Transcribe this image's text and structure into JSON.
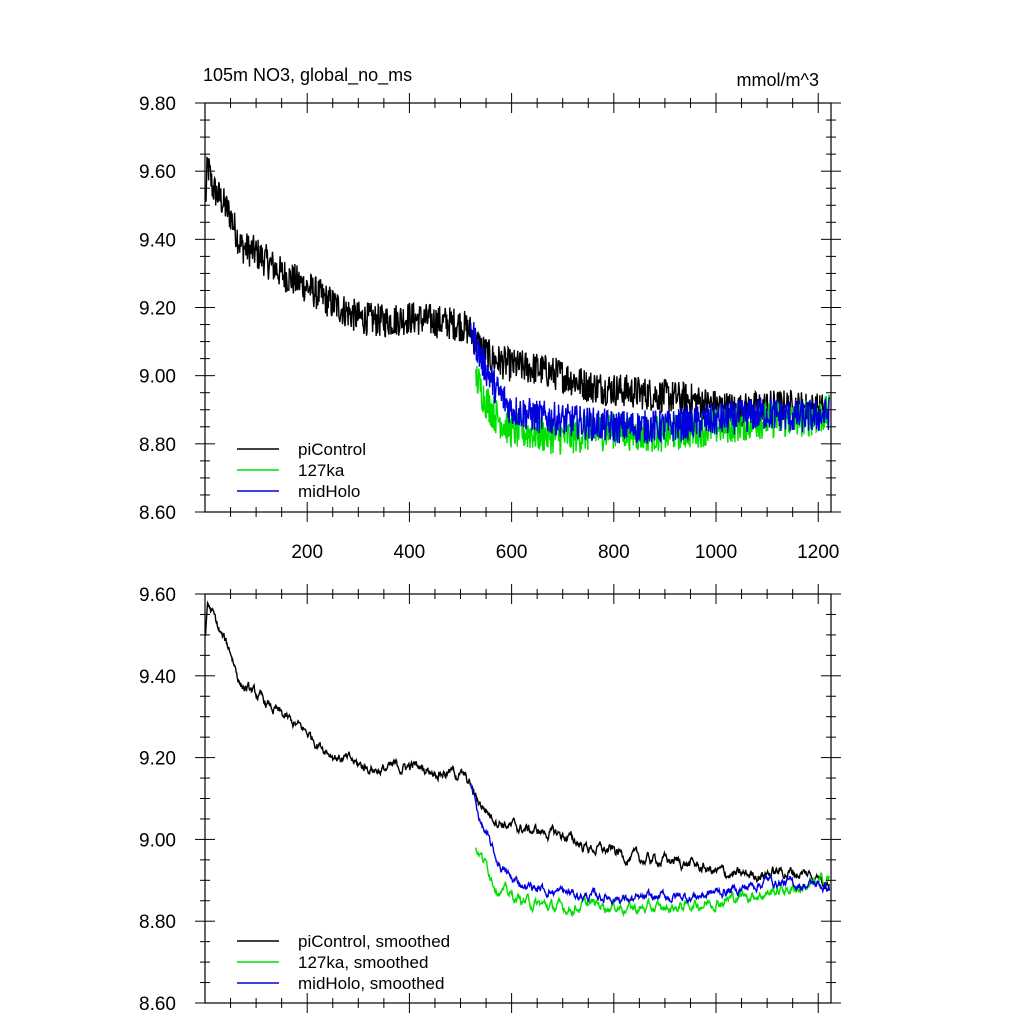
{
  "header": {
    "title": "105m NO3, global_no_ms",
    "units": "mmol/m^3"
  },
  "chart_data": [
    {
      "type": "line",
      "title": "105m NO3, global_no_ms",
      "units": "mmol/m^3",
      "xlim": [
        0,
        1225
      ],
      "ylim": [
        8.6,
        9.8
      ],
      "x_ticks": [
        200,
        400,
        600,
        800,
        1000,
        1200
      ],
      "x_tick_labels": [
        "200",
        "400",
        "600",
        "800",
        "1000",
        "1200"
      ],
      "y_ticks": [
        8.6,
        8.8,
        9.0,
        9.2,
        9.4,
        9.6,
        9.8
      ],
      "y_tick_labels": [
        "8.60",
        "8.80",
        "9.00",
        "9.20",
        "9.40",
        "9.60",
        "9.80"
      ],
      "legend": "bottom-left",
      "series": [
        {
          "name": "piControl",
          "color": "#000000",
          "anchors": [
            [
              1,
              9.5
            ],
            [
              5,
              9.62
            ],
            [
              15,
              9.55
            ],
            [
              30,
              9.52
            ],
            [
              50,
              9.47
            ],
            [
              70,
              9.38
            ],
            [
              100,
              9.36
            ],
            [
              150,
              9.3
            ],
            [
              200,
              9.26
            ],
            [
              250,
              9.21
            ],
            [
              300,
              9.17
            ],
            [
              350,
              9.16
            ],
            [
              400,
              9.17
            ],
            [
              450,
              9.16
            ],
            [
              500,
              9.15
            ],
            [
              520,
              9.13
            ],
            [
              530,
              9.1
            ],
            [
              560,
              9.05
            ],
            [
              600,
              9.03
            ],
            [
              650,
              9.02
            ],
            [
              700,
              9.0
            ],
            [
              750,
              8.97
            ],
            [
              800,
              8.96
            ],
            [
              850,
              8.95
            ],
            [
              900,
              8.94
            ],
            [
              950,
              8.93
            ],
            [
              1000,
              8.91
            ],
            [
              1050,
              8.9
            ],
            [
              1100,
              8.91
            ],
            [
              1150,
              8.91
            ],
            [
              1200,
              8.9
            ],
            [
              1222,
              8.9
            ]
          ],
          "noise": 0.05
        },
        {
          "name": "127ka",
          "color": "#00e000",
          "anchors": [
            [
              530,
              9.0
            ],
            [
              545,
              8.94
            ],
            [
              570,
              8.88
            ],
            [
              600,
              8.84
            ],
            [
              650,
              8.83
            ],
            [
              700,
              8.82
            ],
            [
              750,
              8.83
            ],
            [
              800,
              8.84
            ],
            [
              850,
              8.83
            ],
            [
              900,
              8.83
            ],
            [
              950,
              8.84
            ],
            [
              1000,
              8.85
            ],
            [
              1050,
              8.86
            ],
            [
              1100,
              8.87
            ],
            [
              1150,
              8.87
            ],
            [
              1200,
              8.88
            ],
            [
              1222,
              8.89
            ]
          ],
          "noise": 0.055
        },
        {
          "name": "midHolo",
          "color": "#0000dd",
          "anchors": [
            [
              520,
              9.14
            ],
            [
              540,
              9.05
            ],
            [
              570,
              8.96
            ],
            [
              600,
              8.9
            ],
            [
              650,
              8.88
            ],
            [
              700,
              8.87
            ],
            [
              750,
              8.86
            ],
            [
              800,
              8.85
            ],
            [
              850,
              8.85
            ],
            [
              900,
              8.85
            ],
            [
              950,
              8.86
            ],
            [
              1000,
              8.87
            ],
            [
              1050,
              8.88
            ],
            [
              1100,
              8.89
            ],
            [
              1150,
              8.88
            ],
            [
              1200,
              8.88
            ],
            [
              1222,
              8.89
            ]
          ],
          "noise": 0.05
        }
      ]
    },
    {
      "type": "line",
      "xlim": [
        0,
        1225
      ],
      "ylim": [
        8.6,
        9.6
      ],
      "x_ticks": [
        200,
        400,
        600,
        800,
        1000,
        1200
      ],
      "y_ticks": [
        8.6,
        8.8,
        9.0,
        9.2,
        9.4,
        9.6
      ],
      "y_tick_labels": [
        "8.60",
        "8.80",
        "9.00",
        "9.20",
        "9.40",
        "9.60"
      ],
      "legend": "bottom-left",
      "series": [
        {
          "name": "piControl, smoothed",
          "color": "#000000",
          "anchors": [
            [
              1,
              9.5
            ],
            [
              5,
              9.58
            ],
            [
              15,
              9.55
            ],
            [
              30,
              9.5
            ],
            [
              50,
              9.46
            ],
            [
              70,
              9.38
            ],
            [
              100,
              9.35
            ],
            [
              150,
              9.3
            ],
            [
              200,
              9.26
            ],
            [
              250,
              9.21
            ],
            [
              300,
              9.18
            ],
            [
              350,
              9.17
            ],
            [
              400,
              9.18
            ],
            [
              450,
              9.17
            ],
            [
              500,
              9.16
            ],
            [
              520,
              9.13
            ],
            [
              530,
              9.1
            ],
            [
              560,
              9.06
            ],
            [
              600,
              9.03
            ],
            [
              650,
              9.02
            ],
            [
              700,
              9.01
            ],
            [
              750,
              8.98
            ],
            [
              800,
              8.97
            ],
            [
              850,
              8.95
            ],
            [
              900,
              8.95
            ],
            [
              950,
              8.94
            ],
            [
              1000,
              8.92
            ],
            [
              1050,
              8.91
            ],
            [
              1100,
              8.92
            ],
            [
              1150,
              8.92
            ],
            [
              1200,
              8.91
            ],
            [
              1222,
              8.9
            ]
          ],
          "noise": 0.025
        },
        {
          "name": "127ka, smoothed",
          "color": "#00e000",
          "anchors": [
            [
              530,
              8.98
            ],
            [
              545,
              8.95
            ],
            [
              570,
              8.89
            ],
            [
              600,
              8.86
            ],
            [
              650,
              8.84
            ],
            [
              700,
              8.83
            ],
            [
              750,
              8.84
            ],
            [
              800,
              8.84
            ],
            [
              850,
              8.83
            ],
            [
              900,
              8.83
            ],
            [
              950,
              8.84
            ],
            [
              1000,
              8.85
            ],
            [
              1050,
              8.86
            ],
            [
              1100,
              8.87
            ],
            [
              1150,
              8.88
            ],
            [
              1200,
              8.89
            ],
            [
              1222,
              8.91
            ]
          ],
          "noise": 0.025
        },
        {
          "name": "midHolo, smoothed",
          "color": "#0000dd",
          "anchors": [
            [
              520,
              9.13
            ],
            [
              540,
              9.04
            ],
            [
              570,
              8.95
            ],
            [
              600,
              8.9
            ],
            [
              650,
              8.88
            ],
            [
              700,
              8.87
            ],
            [
              750,
              8.86
            ],
            [
              800,
              8.86
            ],
            [
              850,
              8.85
            ],
            [
              900,
              8.86
            ],
            [
              950,
              8.86
            ],
            [
              1000,
              8.87
            ],
            [
              1050,
              8.88
            ],
            [
              1100,
              8.9
            ],
            [
              1150,
              8.89
            ],
            [
              1200,
              8.89
            ],
            [
              1222,
              8.88
            ]
          ],
          "noise": 0.022
        }
      ]
    }
  ]
}
